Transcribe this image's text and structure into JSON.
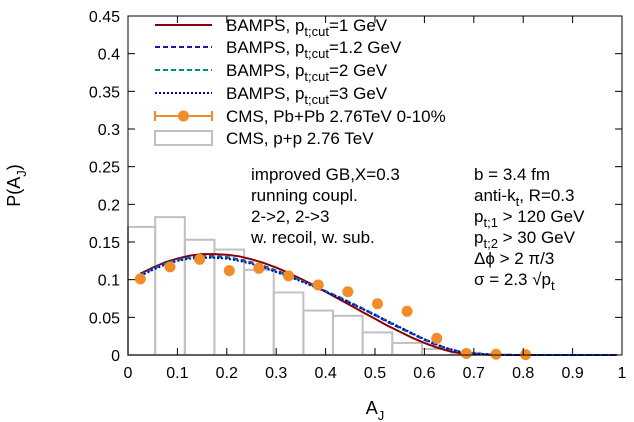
{
  "chart_data": {
    "type": "line",
    "title": "",
    "xlabel": "A",
    "xlabel_sub": "J",
    "ylabel": "P(A",
    "ylabel_sub": "J",
    "ylabel_tail": ")",
    "xlim": [
      0,
      1
    ],
    "ylim": [
      0,
      0.45
    ],
    "grid": false,
    "legend_position": "top-left",
    "x_ticks": [
      "0",
      "0.1",
      "0.2",
      "0.3",
      "0.4",
      "0.5",
      "0.6",
      "0.7",
      "0.8",
      "0.9",
      "1"
    ],
    "y_ticks": [
      "0",
      "0.05",
      "0.1",
      "0.15",
      "0.2",
      "0.25",
      "0.3",
      "0.35",
      "0.4",
      "0.45"
    ],
    "legend": [
      {
        "pre": "BAMPS, p",
        "sub": "t;cut",
        "post": "=1 GeV"
      },
      {
        "pre": "BAMPS, p",
        "sub": "t;cut",
        "post": "=1.2 GeV"
      },
      {
        "pre": "BAMPS, p",
        "sub": "t;cut",
        "post": "=2 GeV"
      },
      {
        "pre": "BAMPS, p",
        "sub": "t;cut",
        "post": "=3 GeV"
      },
      {
        "pre": "CMS, Pb+Pb 2.76TeV 0-10%",
        "sub": "",
        "post": ""
      },
      {
        "pre": "CMS, p+p 2.76 TeV",
        "sub": "",
        "post": ""
      }
    ],
    "annotations_left": [
      "improved GB,X=0.3",
      "running coupl.",
      "2->2, 2->3",
      "w. recoil, w. sub."
    ],
    "annotations_right": [
      {
        "pre": "b = 3.4 fm",
        "sub": "",
        "post": ""
      },
      {
        "pre": "anti-k",
        "sub": "t",
        "post": ", R=0.3"
      },
      {
        "pre": "p",
        "sub": "t;1",
        "post": " > 120 GeV"
      },
      {
        "pre": "p",
        "sub": "t;2",
        "post": " > 30 GeV"
      },
      {
        "pre": "Δϕ > 2 π/3",
        "sub": "",
        "post": ""
      },
      {
        "pre": "σ = 2.3 √p",
        "sub": "t",
        "post": ""
      }
    ],
    "series": [
      {
        "name": "BAMPS, p_t;cut=1 GeV",
        "color": "#8b0000",
        "style": "solid",
        "x": [
          0.025,
          0.05,
          0.075,
          0.1,
          0.125,
          0.15,
          0.175,
          0.2,
          0.225,
          0.25,
          0.275,
          0.3,
          0.325,
          0.35,
          0.375,
          0.4,
          0.425,
          0.45,
          0.475,
          0.5,
          0.525,
          0.55,
          0.575,
          0.6,
          0.625,
          0.65,
          0.675,
          0.7,
          0.75,
          0.8,
          0.85,
          0.9,
          0.95,
          0.99
        ],
        "y": [
          0.108,
          0.116,
          0.123,
          0.128,
          0.132,
          0.134,
          0.134,
          0.133,
          0.131,
          0.127,
          0.122,
          0.116,
          0.109,
          0.101,
          0.093,
          0.084,
          0.075,
          0.066,
          0.057,
          0.048,
          0.039,
          0.031,
          0.023,
          0.016,
          0.01,
          0.005,
          0.002,
          0.001,
          0.0,
          0.0,
          0.0,
          0.0,
          0.0,
          0.0
        ]
      },
      {
        "name": "BAMPS, p_t;cut=1.2 GeV",
        "color": "#1a1aa6",
        "style": "dashed",
        "x": [
          0.025,
          0.05,
          0.075,
          0.1,
          0.125,
          0.15,
          0.175,
          0.2,
          0.225,
          0.25,
          0.275,
          0.3,
          0.325,
          0.35,
          0.375,
          0.4,
          0.425,
          0.45,
          0.475,
          0.5,
          0.525,
          0.55,
          0.575,
          0.6,
          0.625,
          0.65,
          0.675,
          0.7,
          0.75,
          0.8,
          0.85,
          0.9,
          0.95,
          0.99
        ],
        "y": [
          0.107,
          0.115,
          0.122,
          0.127,
          0.13,
          0.131,
          0.131,
          0.13,
          0.127,
          0.123,
          0.118,
          0.112,
          0.106,
          0.099,
          0.092,
          0.085,
          0.077,
          0.069,
          0.061,
          0.053,
          0.044,
          0.036,
          0.028,
          0.02,
          0.013,
          0.008,
          0.004,
          0.002,
          0.0,
          0.0,
          0.0,
          0.0,
          0.0,
          0.0
        ]
      },
      {
        "name": "BAMPS, p_t;cut=2 GeV",
        "color": "#008b8b",
        "style": "dashed",
        "x": [
          0.025,
          0.05,
          0.075,
          0.1,
          0.125,
          0.15,
          0.175,
          0.2,
          0.225,
          0.25,
          0.275,
          0.3,
          0.325,
          0.35,
          0.375,
          0.4,
          0.425,
          0.45,
          0.475,
          0.5,
          0.525,
          0.55,
          0.575,
          0.6,
          0.625,
          0.65,
          0.675,
          0.7,
          0.75,
          0.8,
          0.85,
          0.9,
          0.95,
          0.99
        ],
        "y": [
          0.106,
          0.114,
          0.121,
          0.126,
          0.129,
          0.13,
          0.13,
          0.129,
          0.126,
          0.122,
          0.117,
          0.111,
          0.105,
          0.099,
          0.092,
          0.085,
          0.078,
          0.07,
          0.062,
          0.054,
          0.045,
          0.037,
          0.029,
          0.021,
          0.014,
          0.008,
          0.004,
          0.002,
          0.0,
          0.0,
          0.0,
          0.0,
          0.0,
          0.0
        ]
      },
      {
        "name": "BAMPS, p_t;cut=3 GeV",
        "color": "#0000cd",
        "style": "dotted",
        "x": [
          0.025,
          0.05,
          0.075,
          0.1,
          0.125,
          0.15,
          0.175,
          0.2,
          0.225,
          0.25,
          0.275,
          0.3,
          0.325,
          0.35,
          0.375,
          0.4,
          0.425,
          0.45,
          0.475,
          0.5,
          0.525,
          0.55,
          0.575,
          0.6,
          0.625,
          0.65,
          0.675,
          0.7,
          0.75,
          0.8,
          0.85,
          0.9,
          0.95,
          0.99
        ],
        "y": [
          0.105,
          0.113,
          0.12,
          0.125,
          0.128,
          0.129,
          0.129,
          0.128,
          0.125,
          0.121,
          0.116,
          0.11,
          0.104,
          0.098,
          0.091,
          0.084,
          0.077,
          0.069,
          0.061,
          0.053,
          0.045,
          0.037,
          0.029,
          0.021,
          0.014,
          0.008,
          0.004,
          0.002,
          0.0,
          0.0,
          0.0,
          0.0,
          0.0,
          0.0
        ]
      },
      {
        "name": "CMS, Pb+Pb 2.76TeV 0-10%",
        "color": "#f28c28",
        "style": "points",
        "x": [
          0.025,
          0.085,
          0.145,
          0.205,
          0.265,
          0.325,
          0.385,
          0.445,
          0.505,
          0.565,
          0.625,
          0.685,
          0.745,
          0.805
        ],
        "y": [
          0.101,
          0.117,
          0.127,
          0.112,
          0.115,
          0.105,
          0.093,
          0.084,
          0.068,
          0.058,
          0.022,
          0.002,
          0.001,
          0.0005
        ]
      },
      {
        "name": "CMS, p+p 2.76 TeV",
        "color": "#c0c0c0",
        "style": "histogram",
        "bin_edges": [
          0.0,
          0.055,
          0.115,
          0.175,
          0.235,
          0.295,
          0.355,
          0.415,
          0.475,
          0.535,
          0.595,
          0.655,
          0.715,
          0.775,
          0.835
        ],
        "values": [
          0.17,
          0.183,
          0.153,
          0.14,
          0.113,
          0.083,
          0.059,
          0.052,
          0.03,
          0.016,
          0.008,
          0.003,
          0.001,
          0.0
        ]
      }
    ]
  }
}
